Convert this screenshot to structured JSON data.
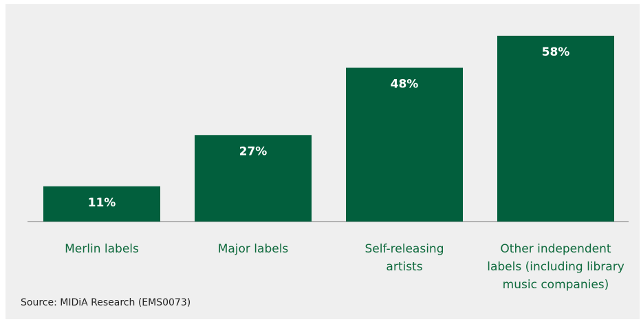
{
  "colors": {
    "bar": "#025f3d",
    "category_text": "#0f6a3d",
    "bar_label_text": "#ffffff",
    "background": "#efefef",
    "baseline": "#9e9e9e"
  },
  "chart_data": {
    "type": "bar",
    "categories": [
      [
        "Merlin labels"
      ],
      [
        "Major labels"
      ],
      [
        "Self-releasing",
        "artists"
      ],
      [
        "Other independent",
        "labels (including library",
        "music companies)"
      ]
    ],
    "values": [
      11,
      27,
      48,
      58
    ],
    "value_labels": [
      "11%",
      "27%",
      "48%",
      "58%"
    ],
    "unit": "%",
    "ylim": [
      0,
      64
    ],
    "grid": false,
    "legend": "none"
  },
  "source": "Source: MIDiA Research (EMS0073)"
}
